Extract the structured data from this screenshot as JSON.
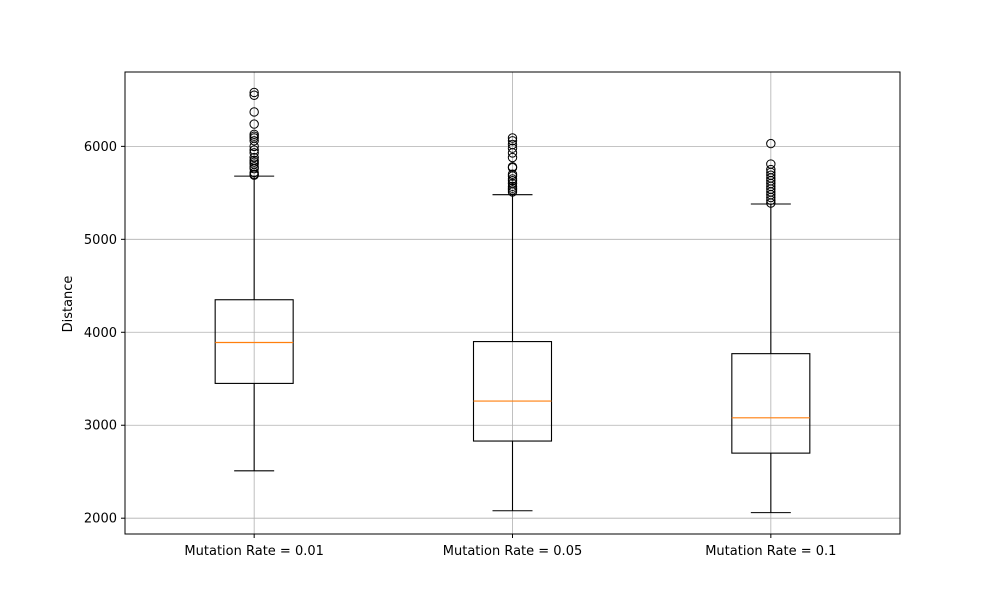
{
  "chart_data": {
    "type": "box",
    "title": "",
    "xlabel": "",
    "ylabel": "Distance",
    "ylim": [
      1830,
      6800
    ],
    "yticks": [
      2000,
      3000,
      4000,
      5000,
      6000
    ],
    "grid": true,
    "colors": {
      "box": "#000000",
      "median": "#ff7f0e",
      "grid": "#b0b0b0"
    },
    "categories": [
      "Mutation Rate = 0.01",
      "Mutation Rate = 0.05",
      "Mutation Rate = 0.1"
    ],
    "boxes": [
      {
        "label": "Mutation Rate = 0.01",
        "whisker_low": 2510,
        "q1": 3450,
        "median": 3890,
        "q3": 4350,
        "whisker_high": 5680,
        "outliers": [
          5690,
          5700,
          5720,
          5760,
          5780,
          5810,
          5830,
          5850,
          5880,
          5930,
          5960,
          6000,
          6060,
          6090,
          6110,
          6130,
          6240,
          6370,
          6550,
          6580
        ]
      },
      {
        "label": "Mutation Rate = 0.05",
        "whisker_low": 2080,
        "q1": 2830,
        "median": 3260,
        "q3": 3900,
        "whisker_high": 5480,
        "outliers": [
          5510,
          5530,
          5550,
          5570,
          5600,
          5630,
          5650,
          5680,
          5700,
          5770,
          5780,
          5880,
          5930,
          5980,
          6020,
          6060,
          6090
        ]
      },
      {
        "label": "Mutation Rate = 0.1",
        "whisker_low": 2060,
        "q1": 2700,
        "median": 3080,
        "q3": 3770,
        "whisker_high": 5380,
        "outliers": [
          5390,
          5420,
          5450,
          5480,
          5510,
          5540,
          5570,
          5600,
          5630,
          5660,
          5690,
          5720,
          5750,
          5810,
          6030
        ]
      }
    ]
  }
}
